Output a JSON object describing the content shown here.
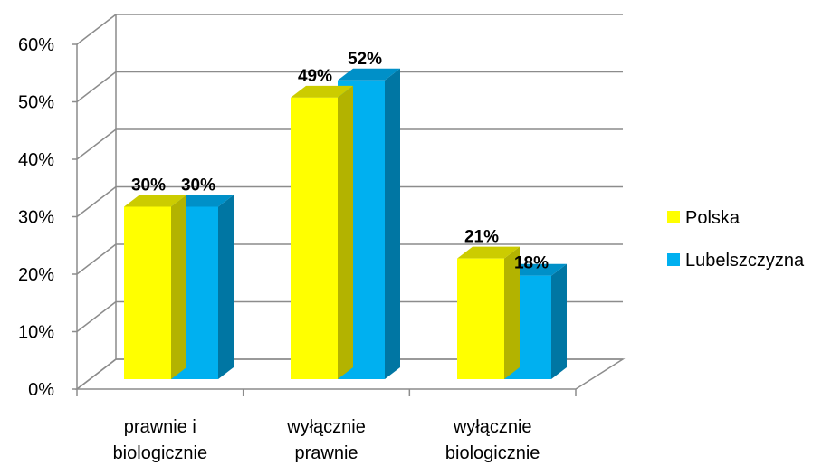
{
  "chart_data": {
    "type": "bar",
    "style": "3d-clustered-column",
    "categories": [
      [
        "prawnie i",
        "biologicznie"
      ],
      [
        "wyłącznie",
        "prawnie"
      ],
      [
        "wyłącznie",
        "biologicznie"
      ]
    ],
    "series": [
      {
        "name": "Polska",
        "values": [
          30,
          49,
          21
        ],
        "labels": [
          "30%",
          "49%",
          "21%"
        ],
        "color": "#FFFF00",
        "side_color": "#B3B300",
        "top_color": "#CCCC00"
      },
      {
        "name": "Lubelszczyzna",
        "values": [
          30,
          52,
          18
        ],
        "labels": [
          "30%",
          "52%",
          "18%"
        ],
        "color": "#00B0F0",
        "side_color": "#0076A3",
        "top_color": "#0090C8"
      }
    ],
    "y_ticks": [
      "0%",
      "10%",
      "20%",
      "30%",
      "40%",
      "50%",
      "60%"
    ],
    "ylim": [
      0,
      60
    ],
    "grid": true,
    "legend_position": "right"
  }
}
